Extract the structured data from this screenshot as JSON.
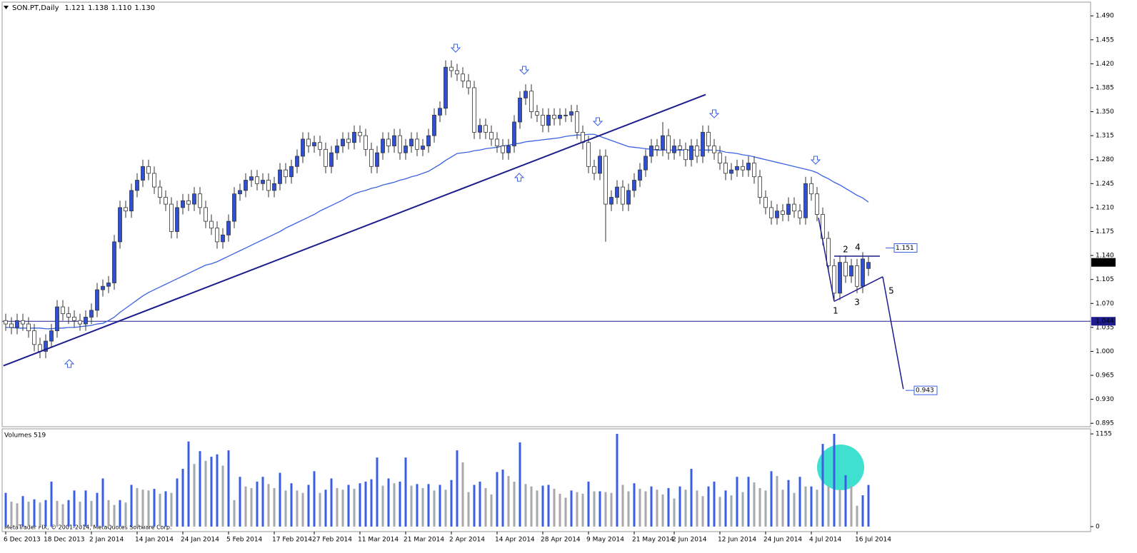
{
  "chart_data": [
    {
      "type": "candlestick",
      "title": "SON.PT,Daily",
      "ohlc_labels": [
        "1.121",
        "1.138",
        "1.110",
        "1.130"
      ],
      "categories": [
        "6 Dec 2013",
        null,
        null,
        null,
        null,
        null,
        null,
        "18 Dec 2013",
        null,
        null,
        null,
        null,
        null,
        null,
        null,
        "2 Jan 2014",
        null,
        null,
        null,
        null,
        null,
        null,
        null,
        "14 Jan 2014",
        null,
        null,
        null,
        null,
        null,
        null,
        null,
        "24 Jan 2014",
        null,
        null,
        null,
        null,
        null,
        null,
        null,
        "5 Feb 2014",
        null,
        null,
        null,
        null,
        null,
        null,
        null,
        "17 Feb 2014",
        null,
        null,
        null,
        null,
        null,
        null,
        "27 Feb 2014",
        null,
        null,
        null,
        null,
        null,
        null,
        null,
        "11 Mar 2014",
        null,
        null,
        null,
        null,
        null,
        null,
        null,
        "21 Mar 2014",
        null,
        null,
        null,
        null,
        null,
        null,
        null,
        "2 Apr 2014",
        null,
        null,
        null,
        null,
        null,
        null,
        null,
        "14 Apr 2014",
        null,
        null,
        null,
        null,
        null,
        null,
        null,
        "28 Apr 2014",
        null,
        null,
        null,
        null,
        null,
        null,
        null,
        "9 May 2014",
        null,
        null,
        null,
        null,
        null,
        null,
        null,
        "21 May 2014",
        null,
        null,
        null,
        null,
        null,
        null,
        "2 Jun 2014",
        null,
        null,
        null,
        null,
        null,
        null,
        null,
        "12 Jun 2014",
        null,
        null,
        null,
        null,
        null,
        null,
        null,
        "24 Jun 2014",
        null,
        null,
        null,
        null,
        null,
        null,
        null,
        "4 Jul 2014",
        null,
        null,
        null,
        null,
        null,
        null,
        null,
        "16 Jul 2014",
        null,
        null
      ],
      "open": [
        1.045,
        1.04,
        1.035,
        1.045,
        1.04,
        1.03,
        1.01,
        1.0,
        1.015,
        1.03,
        1.065,
        1.055,
        1.05,
        1.045,
        1.04,
        1.05,
        1.06,
        1.09,
        1.095,
        1.1,
        1.16,
        1.21,
        1.205,
        1.235,
        1.25,
        1.27,
        1.26,
        1.24,
        1.225,
        1.215,
        1.175,
        1.21,
        1.22,
        1.215,
        1.23,
        1.21,
        1.19,
        1.18,
        1.16,
        1.17,
        1.19,
        1.23,
        1.235,
        1.25,
        1.255,
        1.245,
        1.25,
        1.235,
        1.245,
        1.265,
        1.255,
        1.27,
        1.285,
        1.31,
        1.3,
        1.305,
        1.295,
        1.27,
        1.29,
        1.3,
        1.31,
        1.305,
        1.32,
        1.315,
        1.295,
        1.27,
        1.29,
        1.31,
        1.3,
        1.315,
        1.29,
        1.3,
        1.31,
        1.295,
        1.3,
        1.315,
        1.345,
        1.355,
        1.415,
        1.41,
        1.405,
        1.395,
        1.385,
        1.32,
        1.33,
        1.32,
        1.31,
        1.3,
        1.29,
        1.3,
        1.335,
        1.37,
        1.38,
        1.35,
        1.345,
        1.33,
        1.345,
        1.34,
        1.345,
        1.345,
        1.35,
        1.32,
        1.305,
        1.27,
        1.26,
        1.285,
        1.215,
        1.225,
        1.24,
        1.215,
        1.235,
        1.25,
        1.265,
        1.285,
        1.3,
        1.295,
        1.315,
        1.29,
        1.3,
        1.295,
        1.28,
        1.3,
        1.285,
        1.32,
        1.3,
        1.29,
        1.275,
        1.26,
        1.265,
        1.27,
        1.265,
        1.275,
        1.255,
        1.225,
        1.21,
        1.195,
        1.205,
        1.2,
        1.215,
        1.205,
        1.195,
        1.245,
        1.23,
        1.2,
        1.165,
        1.125,
        1.085,
        1.13,
        1.11,
        1.125,
        1.095,
        1.121
      ],
      "high": [
        1.055,
        1.05,
        1.055,
        1.055,
        1.05,
        1.04,
        1.02,
        1.025,
        1.04,
        1.075,
        1.075,
        1.065,
        1.06,
        1.055,
        1.06,
        1.07,
        1.1,
        1.105,
        1.11,
        1.17,
        1.22,
        1.22,
        1.245,
        1.26,
        1.28,
        1.28,
        1.27,
        1.25,
        1.235,
        1.225,
        1.22,
        1.23,
        1.23,
        1.24,
        1.24,
        1.22,
        1.2,
        1.19,
        1.18,
        1.2,
        1.24,
        1.245,
        1.26,
        1.265,
        1.265,
        1.26,
        1.26,
        1.255,
        1.275,
        1.275,
        1.28,
        1.295,
        1.32,
        1.32,
        1.315,
        1.315,
        1.305,
        1.3,
        1.31,
        1.32,
        1.32,
        1.33,
        1.33,
        1.325,
        1.305,
        1.3,
        1.32,
        1.32,
        1.325,
        1.325,
        1.31,
        1.32,
        1.32,
        1.31,
        1.325,
        1.355,
        1.365,
        1.425,
        1.425,
        1.42,
        1.415,
        1.405,
        1.395,
        1.34,
        1.34,
        1.33,
        1.32,
        1.31,
        1.31,
        1.345,
        1.38,
        1.39,
        1.39,
        1.36,
        1.355,
        1.355,
        1.355,
        1.355,
        1.355,
        1.36,
        1.36,
        1.33,
        1.315,
        1.28,
        1.295,
        1.295,
        1.235,
        1.25,
        1.25,
        1.245,
        1.26,
        1.275,
        1.295,
        1.31,
        1.31,
        1.335,
        1.325,
        1.31,
        1.31,
        1.305,
        1.31,
        1.31,
        1.33,
        1.33,
        1.31,
        1.3,
        1.285,
        1.275,
        1.28,
        1.28,
        1.285,
        1.285,
        1.265,
        1.235,
        1.22,
        1.215,
        1.215,
        1.225,
        1.225,
        1.215,
        1.255,
        1.255,
        1.24,
        1.21,
        1.175,
        1.135,
        1.14,
        1.14,
        1.135,
        1.135,
        1.145,
        1.138
      ],
      "low": [
        1.03,
        1.025,
        1.025,
        1.03,
        1.02,
        1.0,
        0.99,
        0.99,
        1.005,
        1.02,
        1.045,
        1.04,
        1.035,
        1.03,
        1.03,
        1.04,
        1.05,
        1.08,
        1.085,
        1.09,
        1.15,
        1.195,
        1.195,
        1.225,
        1.24,
        1.25,
        1.23,
        1.215,
        1.205,
        1.165,
        1.165,
        1.2,
        1.205,
        1.205,
        1.2,
        1.18,
        1.17,
        1.15,
        1.15,
        1.16,
        1.18,
        1.22,
        1.225,
        1.24,
        1.235,
        1.235,
        1.225,
        1.225,
        1.235,
        1.245,
        1.245,
        1.26,
        1.275,
        1.29,
        1.29,
        1.285,
        1.26,
        1.26,
        1.28,
        1.29,
        1.295,
        1.295,
        1.305,
        1.285,
        1.26,
        1.26,
        1.28,
        1.29,
        1.29,
        1.28,
        1.28,
        1.29,
        1.285,
        1.285,
        1.29,
        1.305,
        1.335,
        1.345,
        1.4,
        1.395,
        1.385,
        1.375,
        1.31,
        1.31,
        1.31,
        1.3,
        1.29,
        1.28,
        1.28,
        1.29,
        1.325,
        1.36,
        1.34,
        1.335,
        1.32,
        1.32,
        1.33,
        1.33,
        1.335,
        1.335,
        1.31,
        1.295,
        1.26,
        1.25,
        1.25,
        1.16,
        1.205,
        1.215,
        1.205,
        1.205,
        1.225,
        1.24,
        1.255,
        1.275,
        1.285,
        1.285,
        1.28,
        1.28,
        1.285,
        1.27,
        1.27,
        1.275,
        1.275,
        1.29,
        1.28,
        1.265,
        1.25,
        1.25,
        1.255,
        1.255,
        1.255,
        1.245,
        1.215,
        1.2,
        1.185,
        1.185,
        1.19,
        1.19,
        1.195,
        1.185,
        1.185,
        1.22,
        1.19,
        1.155,
        1.115,
        1.075,
        1.075,
        1.1,
        1.1,
        1.085,
        1.085,
        1.11
      ],
      "close": [
        1.04,
        1.035,
        1.045,
        1.04,
        1.03,
        1.01,
        1.0,
        1.015,
        1.03,
        1.065,
        1.055,
        1.05,
        1.045,
        1.04,
        1.05,
        1.06,
        1.09,
        1.095,
        1.1,
        1.16,
        1.21,
        1.205,
        1.235,
        1.25,
        1.27,
        1.26,
        1.24,
        1.225,
        1.215,
        1.175,
        1.21,
        1.22,
        1.215,
        1.23,
        1.21,
        1.19,
        1.18,
        1.16,
        1.17,
        1.19,
        1.23,
        1.235,
        1.25,
        1.255,
        1.245,
        1.25,
        1.235,
        1.245,
        1.265,
        1.255,
        1.27,
        1.285,
        1.31,
        1.3,
        1.305,
        1.295,
        1.27,
        1.29,
        1.3,
        1.31,
        1.305,
        1.32,
        1.315,
        1.295,
        1.27,
        1.29,
        1.31,
        1.3,
        1.315,
        1.29,
        1.3,
        1.31,
        1.295,
        1.3,
        1.315,
        1.345,
        1.355,
        1.415,
        1.41,
        1.405,
        1.395,
        1.385,
        1.32,
        1.33,
        1.32,
        1.31,
        1.3,
        1.29,
        1.3,
        1.335,
        1.37,
        1.38,
        1.35,
        1.345,
        1.33,
        1.345,
        1.34,
        1.345,
        1.345,
        1.35,
        1.32,
        1.305,
        1.27,
        1.26,
        1.285,
        1.215,
        1.225,
        1.24,
        1.215,
        1.235,
        1.25,
        1.265,
        1.285,
        1.3,
        1.295,
        1.315,
        1.29,
        1.3,
        1.295,
        1.28,
        1.3,
        1.285,
        1.32,
        1.3,
        1.29,
        1.275,
        1.26,
        1.265,
        1.27,
        1.265,
        1.275,
        1.255,
        1.225,
        1.21,
        1.195,
        1.205,
        1.2,
        1.215,
        1.205,
        1.195,
        1.245,
        1.23,
        1.2,
        1.165,
        1.125,
        1.085,
        1.13,
        1.11,
        1.125,
        1.095,
        1.135,
        1.13
      ],
      "up_color": "#2f4fd4",
      "down_color": "#ffffff",
      "wick_color": "#333333",
      "moving_average": {
        "color": "#3a62e0",
        "values": [
          1.035,
          1.035,
          1.034,
          1.034,
          1.034,
          1.034,
          1.034,
          1.033,
          1.033,
          1.034,
          1.034,
          1.035,
          1.035,
          1.036,
          1.037,
          1.038,
          1.04,
          1.041,
          1.045,
          1.05,
          1.057,
          1.063,
          1.069,
          1.075,
          1.081,
          1.086,
          1.09,
          1.094,
          1.098,
          1.102,
          1.106,
          1.11,
          1.114,
          1.118,
          1.122,
          1.126,
          1.128,
          1.131,
          1.135,
          1.139,
          1.143,
          1.147,
          1.151,
          1.155,
          1.159,
          1.163,
          1.167,
          1.171,
          1.175,
          1.18,
          1.184,
          1.188,
          1.192,
          1.196,
          1.2,
          1.205,
          1.209,
          1.213,
          1.217,
          1.221,
          1.226,
          1.23,
          1.233,
          1.235,
          1.238,
          1.24,
          1.243,
          1.245,
          1.247,
          1.25,
          1.252,
          1.255,
          1.257,
          1.26,
          1.263,
          1.268,
          1.273,
          1.279,
          1.284,
          1.289,
          1.29,
          1.291,
          1.293,
          1.294,
          1.296,
          1.297,
          1.298,
          1.3,
          1.301,
          1.303,
          1.304,
          1.306,
          1.307,
          1.308,
          1.309,
          1.31,
          1.311,
          1.312,
          1.314,
          1.315,
          1.316,
          1.316,
          1.317,
          1.317,
          1.314,
          1.311,
          1.308,
          1.305,
          1.302,
          1.299,
          1.298,
          1.297,
          1.296,
          1.295,
          1.294,
          1.294,
          1.294,
          1.294,
          1.294,
          1.294,
          1.294,
          1.294,
          1.294,
          1.294,
          1.294,
          1.293,
          1.291,
          1.29,
          1.289,
          1.287,
          1.286,
          1.284,
          1.282,
          1.28,
          1.278,
          1.276,
          1.274,
          1.272,
          1.27,
          1.268,
          1.266,
          1.264,
          1.261,
          1.256,
          1.252,
          1.247,
          1.243,
          1.238,
          1.233,
          1.228,
          1.224,
          1.218
        ]
      },
      "trendline": {
        "color": "#1c1c8c",
        "x": [
          -0.4,
          122.5
        ],
        "y": [
          0.979,
          1.375
        ]
      },
      "hlines": [
        {
          "value": 1.044,
          "label": "1.044",
          "color": "#1c1c8c"
        }
      ],
      "last_price": {
        "value": 1.13,
        "label": "1.130"
      },
      "pattern": {
        "color": "#1c1c8c",
        "label_color": "#808080",
        "segments": [
          {
            "x": [
              142.25,
              145
            ],
            "y": [
              1.195,
              1.073
            ]
          },
          {
            "x": [
              145,
              153
            ],
            "y": [
              1.139,
              1.139
            ]
          },
          {
            "x": [
              145,
              153.5
            ],
            "y": [
              1.073,
              1.109
            ]
          },
          {
            "x": [
              153.5,
              157.1
            ],
            "y": [
              1.109,
              0.945
            ]
          }
        ],
        "labels": [
          "1",
          "2",
          "3",
          "4",
          "5"
        ],
        "targets": [
          {
            "value": 1.151,
            "label": "1.151"
          },
          {
            "value": 0.943,
            "label": "0.943"
          }
        ]
      },
      "ylim": [
        0.89,
        1.51
      ],
      "yticks": [
        {
          "value": 1.49,
          "label": "1.490"
        },
        {
          "value": 1.455,
          "label": "1.455"
        },
        {
          "value": 1.42,
          "label": "1.420"
        },
        {
          "value": 1.385,
          "label": "1.385"
        },
        {
          "value": 1.35,
          "label": "1.350"
        },
        {
          "value": 1.315,
          "label": "1.315"
        },
        {
          "value": 1.28,
          "label": "1.280"
        },
        {
          "value": 1.245,
          "label": "1.245"
        },
        {
          "value": 1.21,
          "label": "1.210"
        },
        {
          "value": 1.175,
          "label": "1.175"
        },
        {
          "value": 1.14,
          "label": "1.140"
        },
        {
          "value": 1.105,
          "label": "1.105"
        },
        {
          "value": 1.07,
          "label": "1.070"
        },
        {
          "value": 1.035,
          "label": "1.035"
        },
        {
          "value": 1.0,
          "label": "1.000"
        },
        {
          "value": 0.965,
          "label": "0.965"
        },
        {
          "value": 0.93,
          "label": "0.930"
        },
        {
          "value": 0.895,
          "label": "0.895"
        }
      ]
    },
    {
      "type": "volume",
      "title": "Volumes 519",
      "up_color": "#3a5fe0",
      "down_color": "#a9a9a9",
      "values": [
        420,
        310,
        290,
        380,
        310,
        340,
        300,
        330,
        560,
        320,
        280,
        330,
        450,
        310,
        450,
        320,
        420,
        600,
        330,
        270,
        330,
        300,
        520,
        480,
        460,
        450,
        470,
        410,
        440,
        420,
        600,
        720,
        1060,
        780,
        940,
        820,
        870,
        900,
        760,
        950,
        330,
        620,
        500,
        480,
        560,
        620,
        530,
        480,
        670,
        450,
        540,
        450,
        420,
        520,
        690,
        420,
        460,
        600,
        480,
        460,
        520,
        470,
        540,
        560,
        590,
        860,
        510,
        600,
        540,
        560,
        860,
        510,
        530,
        480,
        530,
        450,
        520,
        460,
        580,
        950,
        800,
        430,
        520,
        560,
        480,
        400,
        680,
        710,
        630,
        560,
        1050,
        530,
        500,
        450,
        510,
        520,
        470,
        410,
        360,
        450,
        430,
        410,
        560,
        440,
        440,
        430,
        420,
        1155,
        520,
        440,
        540,
        470,
        440,
        500,
        460,
        400,
        480,
        350,
        500,
        460,
        720,
        450,
        380,
        500,
        560,
        370,
        450,
        390,
        620,
        430,
        620,
        550,
        480,
        450,
        690,
        630,
        460,
        580,
        420,
        620,
        500,
        500,
        460,
        1030,
        500,
        1155,
        460,
        640,
        500,
        260,
        390,
        519
      ],
      "ylim": [
        0,
        1200
      ],
      "yticks": [
        1155,
        0
      ]
    }
  ],
  "footer": "MetaTrader FIX, © 2001-2014, MetaQuotes Software Corp."
}
